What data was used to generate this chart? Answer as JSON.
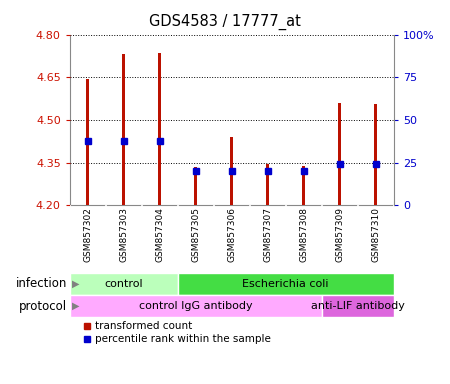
{
  "title": "GDS4583 / 17777_at",
  "samples": [
    "GSM857302",
    "GSM857303",
    "GSM857304",
    "GSM857305",
    "GSM857306",
    "GSM857307",
    "GSM857308",
    "GSM857309",
    "GSM857310"
  ],
  "transformed_counts": [
    4.645,
    4.73,
    4.735,
    4.335,
    4.44,
    4.345,
    4.34,
    4.56,
    4.555
  ],
  "percentile_ranks": [
    38,
    38,
    38,
    20,
    20,
    20,
    20,
    24,
    24
  ],
  "ylim_left": [
    4.2,
    4.8
  ],
  "ylim_right": [
    0,
    100
  ],
  "yticks_left": [
    4.2,
    4.35,
    4.5,
    4.65,
    4.8
  ],
  "yticks_right": [
    0,
    25,
    50,
    75,
    100
  ],
  "bar_color": "#bb1100",
  "dot_color": "#0000cc",
  "bar_bottom": 4.2,
  "infection_labels": [
    {
      "text": "control",
      "start": 0,
      "end": 2,
      "color": "#bbffbb"
    },
    {
      "text": "Escherichia coli",
      "start": 3,
      "end": 8,
      "color": "#44dd44"
    }
  ],
  "protocol_labels": [
    {
      "text": "control IgG antibody",
      "start": 0,
      "end": 6,
      "color": "#ffaaff"
    },
    {
      "text": "anti-LIF antibody",
      "start": 7,
      "end": 8,
      "color": "#dd66dd"
    }
  ],
  "infection_row_label": "infection",
  "protocol_row_label": "protocol",
  "legend_red": "transformed count",
  "legend_blue": "percentile rank within the sample",
  "tick_label_color_left": "#cc1100",
  "tick_label_color_right": "#0000cc",
  "bar_width": 0.08,
  "xlabels_bg": "#cccccc"
}
